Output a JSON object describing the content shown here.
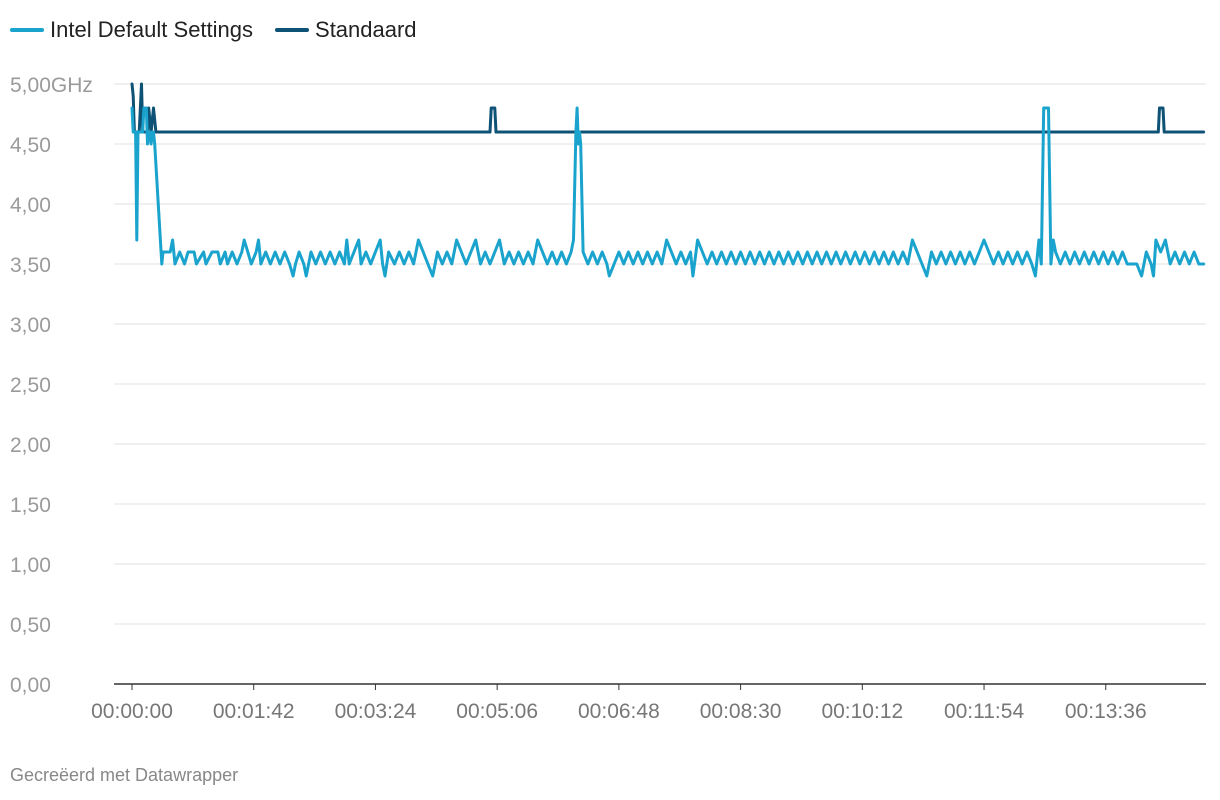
{
  "legend": [
    {
      "name": "Intel Default Settings",
      "color": "#1aa3cc"
    },
    {
      "name": "Standaard",
      "color": "#0e5276"
    }
  ],
  "footer": "Gecreëerd met Datawrapper",
  "chart_data": {
    "type": "line",
    "y_tick_labels": [
      "0,00",
      "0,50",
      "1,00",
      "1,50",
      "2,00",
      "2,50",
      "3,00",
      "3,50",
      "4,00",
      "4,50",
      "5,00GHz"
    ],
    "y_ticks": [
      0,
      0.5,
      1,
      1.5,
      2,
      2.5,
      3,
      3.5,
      4,
      4.5,
      5
    ],
    "ylim": [
      0,
      5
    ],
    "x_tick_labels": [
      "00:00:00",
      "00:01:42",
      "00:03:24",
      "00:05:06",
      "00:06:48",
      "00:08:30",
      "00:10:12",
      "00:11:54",
      "00:13:36"
    ],
    "x_ticks_seconds": [
      0,
      102,
      204,
      306,
      408,
      510,
      612,
      714,
      816
    ],
    "x_range_seconds": [
      0,
      900
    ],
    "grid": "horizontal",
    "legend_position": "top-left",
    "series": [
      {
        "name": "Intel Default Settings",
        "color": "#1aa3cc",
        "points": [
          [
            0,
            4.8
          ],
          [
            1,
            4.6
          ],
          [
            3,
            4.6
          ],
          [
            4,
            3.7
          ],
          [
            5,
            4.6
          ],
          [
            6,
            4.6
          ],
          [
            7,
            4.6
          ],
          [
            9,
            4.6
          ],
          [
            10,
            4.8
          ],
          [
            12,
            4.8
          ],
          [
            13,
            4.5
          ],
          [
            14,
            4.6
          ],
          [
            15,
            4.6
          ],
          [
            16,
            4.5
          ],
          [
            17,
            4.6
          ],
          [
            18,
            4.6
          ],
          [
            19,
            4.5
          ],
          [
            25,
            3.5
          ],
          [
            26,
            3.6
          ],
          [
            32,
            3.6
          ],
          [
            34,
            3.7
          ],
          [
            36,
            3.5
          ],
          [
            40,
            3.6
          ],
          [
            44,
            3.5
          ],
          [
            47,
            3.6
          ],
          [
            52,
            3.6
          ],
          [
            54,
            3.5
          ],
          [
            60,
            3.6
          ],
          [
            62,
            3.5
          ],
          [
            67,
            3.6
          ],
          [
            72,
            3.6
          ],
          [
            74,
            3.5
          ],
          [
            78,
            3.6
          ],
          [
            80,
            3.5
          ],
          [
            84,
            3.6
          ],
          [
            88,
            3.5
          ],
          [
            92,
            3.6
          ],
          [
            94,
            3.7
          ],
          [
            97,
            3.6
          ],
          [
            100,
            3.5
          ],
          [
            104,
            3.6
          ],
          [
            106,
            3.7
          ],
          [
            108,
            3.5
          ],
          [
            112,
            3.6
          ],
          [
            116,
            3.5
          ],
          [
            120,
            3.6
          ],
          [
            124,
            3.5
          ],
          [
            128,
            3.6
          ],
          [
            132,
            3.5
          ],
          [
            135,
            3.4
          ],
          [
            137,
            3.5
          ],
          [
            140,
            3.6
          ],
          [
            144,
            3.5
          ],
          [
            146,
            3.4
          ],
          [
            150,
            3.6
          ],
          [
            154,
            3.5
          ],
          [
            158,
            3.6
          ],
          [
            162,
            3.5
          ],
          [
            166,
            3.6
          ],
          [
            170,
            3.5
          ],
          [
            174,
            3.6
          ],
          [
            178,
            3.5
          ],
          [
            180,
            3.7
          ],
          [
            182,
            3.5
          ],
          [
            186,
            3.6
          ],
          [
            190,
            3.7
          ],
          [
            192,
            3.5
          ],
          [
            196,
            3.6
          ],
          [
            200,
            3.5
          ],
          [
            204,
            3.6
          ],
          [
            208,
            3.7
          ],
          [
            210,
            3.5
          ],
          [
            212,
            3.4
          ],
          [
            215,
            3.6
          ],
          [
            220,
            3.5
          ],
          [
            224,
            3.6
          ],
          [
            228,
            3.5
          ],
          [
            232,
            3.6
          ],
          [
            236,
            3.5
          ],
          [
            240,
            3.7
          ],
          [
            244,
            3.6
          ],
          [
            248,
            3.5
          ],
          [
            252,
            3.4
          ],
          [
            256,
            3.6
          ],
          [
            260,
            3.5
          ],
          [
            264,
            3.6
          ],
          [
            268,
            3.5
          ],
          [
            272,
            3.7
          ],
          [
            276,
            3.6
          ],
          [
            280,
            3.5
          ],
          [
            284,
            3.6
          ],
          [
            288,
            3.7
          ],
          [
            292,
            3.5
          ],
          [
            296,
            3.6
          ],
          [
            300,
            3.5
          ],
          [
            304,
            3.6
          ],
          [
            308,
            3.7
          ],
          [
            312,
            3.5
          ],
          [
            316,
            3.6
          ],
          [
            320,
            3.5
          ],
          [
            324,
            3.6
          ],
          [
            328,
            3.5
          ],
          [
            332,
            3.6
          ],
          [
            336,
            3.5
          ],
          [
            340,
            3.7
          ],
          [
            344,
            3.6
          ],
          [
            348,
            3.5
          ],
          [
            352,
            3.6
          ],
          [
            356,
            3.5
          ],
          [
            360,
            3.6
          ],
          [
            364,
            3.5
          ],
          [
            368,
            3.6
          ],
          [
            370,
            3.7
          ],
          [
            372,
            4.6
          ],
          [
            373,
            4.8
          ],
          [
            374,
            4.5
          ],
          [
            375,
            4.6
          ],
          [
            376,
            4.5
          ],
          [
            378,
            3.6
          ],
          [
            382,
            3.5
          ],
          [
            386,
            3.6
          ],
          [
            390,
            3.5
          ],
          [
            394,
            3.6
          ],
          [
            398,
            3.5
          ],
          [
            400,
            3.4
          ],
          [
            404,
            3.5
          ],
          [
            408,
            3.6
          ],
          [
            412,
            3.5
          ],
          [
            416,
            3.6
          ],
          [
            420,
            3.5
          ],
          [
            424,
            3.6
          ],
          [
            428,
            3.5
          ],
          [
            432,
            3.6
          ],
          [
            436,
            3.5
          ],
          [
            440,
            3.6
          ],
          [
            444,
            3.5
          ],
          [
            448,
            3.7
          ],
          [
            452,
            3.6
          ],
          [
            456,
            3.5
          ],
          [
            460,
            3.6
          ],
          [
            464,
            3.5
          ],
          [
            468,
            3.6
          ],
          [
            470,
            3.4
          ],
          [
            474,
            3.7
          ],
          [
            478,
            3.6
          ],
          [
            482,
            3.5
          ],
          [
            486,
            3.6
          ],
          [
            490,
            3.5
          ],
          [
            494,
            3.6
          ],
          [
            498,
            3.5
          ],
          [
            502,
            3.6
          ],
          [
            506,
            3.5
          ],
          [
            510,
            3.6
          ],
          [
            514,
            3.5
          ],
          [
            518,
            3.6
          ],
          [
            522,
            3.5
          ],
          [
            526,
            3.6
          ],
          [
            530,
            3.5
          ],
          [
            534,
            3.6
          ],
          [
            538,
            3.5
          ],
          [
            542,
            3.6
          ],
          [
            546,
            3.5
          ],
          [
            550,
            3.6
          ],
          [
            554,
            3.5
          ],
          [
            558,
            3.6
          ],
          [
            562,
            3.5
          ],
          [
            566,
            3.6
          ],
          [
            570,
            3.5
          ],
          [
            574,
            3.6
          ],
          [
            578,
            3.5
          ],
          [
            582,
            3.6
          ],
          [
            586,
            3.5
          ],
          [
            590,
            3.6
          ],
          [
            594,
            3.5
          ],
          [
            598,
            3.6
          ],
          [
            602,
            3.5
          ],
          [
            606,
            3.6
          ],
          [
            610,
            3.5
          ],
          [
            614,
            3.6
          ],
          [
            618,
            3.5
          ],
          [
            622,
            3.6
          ],
          [
            626,
            3.5
          ],
          [
            630,
            3.6
          ],
          [
            634,
            3.5
          ],
          [
            638,
            3.6
          ],
          [
            642,
            3.5
          ],
          [
            646,
            3.6
          ],
          [
            650,
            3.5
          ],
          [
            654,
            3.7
          ],
          [
            658,
            3.6
          ],
          [
            662,
            3.5
          ],
          [
            666,
            3.4
          ],
          [
            670,
            3.6
          ],
          [
            674,
            3.5
          ],
          [
            678,
            3.6
          ],
          [
            682,
            3.5
          ],
          [
            686,
            3.6
          ],
          [
            690,
            3.5
          ],
          [
            694,
            3.6
          ],
          [
            698,
            3.5
          ],
          [
            702,
            3.6
          ],
          [
            706,
            3.5
          ],
          [
            710,
            3.6
          ],
          [
            714,
            3.7
          ],
          [
            718,
            3.6
          ],
          [
            722,
            3.5
          ],
          [
            726,
            3.6
          ],
          [
            730,
            3.5
          ],
          [
            734,
            3.6
          ],
          [
            738,
            3.5
          ],
          [
            742,
            3.6
          ],
          [
            746,
            3.5
          ],
          [
            750,
            3.6
          ],
          [
            754,
            3.5
          ],
          [
            757,
            3.4
          ],
          [
            760,
            3.7
          ],
          [
            762,
            3.5
          ],
          [
            764,
            4.8
          ],
          [
            768,
            4.8
          ],
          [
            770,
            3.5
          ],
          [
            772,
            3.7
          ],
          [
            774,
            3.6
          ],
          [
            778,
            3.5
          ],
          [
            782,
            3.6
          ],
          [
            786,
            3.5
          ],
          [
            790,
            3.6
          ],
          [
            794,
            3.5
          ],
          [
            798,
            3.6
          ],
          [
            802,
            3.5
          ],
          [
            806,
            3.6
          ],
          [
            810,
            3.5
          ],
          [
            814,
            3.6
          ],
          [
            818,
            3.5
          ],
          [
            822,
            3.6
          ],
          [
            826,
            3.5
          ],
          [
            830,
            3.6
          ],
          [
            834,
            3.5
          ],
          [
            838,
            3.5
          ],
          [
            842,
            3.5
          ],
          [
            846,
            3.4
          ],
          [
            850,
            3.6
          ],
          [
            854,
            3.5
          ],
          [
            856,
            3.4
          ],
          [
            858,
            3.7
          ],
          [
            862,
            3.6
          ],
          [
            866,
            3.7
          ],
          [
            870,
            3.5
          ],
          [
            874,
            3.6
          ],
          [
            878,
            3.5
          ],
          [
            882,
            3.6
          ],
          [
            886,
            3.5
          ],
          [
            890,
            3.6
          ],
          [
            894,
            3.5
          ],
          [
            898,
            3.5
          ]
        ]
      },
      {
        "name": "Standaard",
        "color": "#0e5276",
        "points": [
          [
            0,
            5.0
          ],
          [
            1,
            4.9
          ],
          [
            2,
            4.6
          ],
          [
            6,
            4.6
          ],
          [
            8,
            5.0
          ],
          [
            9,
            4.6
          ],
          [
            13,
            4.6
          ],
          [
            14,
            4.8
          ],
          [
            16,
            4.6
          ],
          [
            18,
            4.8
          ],
          [
            20,
            4.6
          ],
          [
            300,
            4.6
          ],
          [
            301,
            4.8
          ],
          [
            304,
            4.8
          ],
          [
            305,
            4.6
          ],
          [
            860,
            4.6
          ],
          [
            861,
            4.8
          ],
          [
            864,
            4.8
          ],
          [
            865,
            4.6
          ],
          [
            898,
            4.6
          ]
        ]
      }
    ]
  }
}
